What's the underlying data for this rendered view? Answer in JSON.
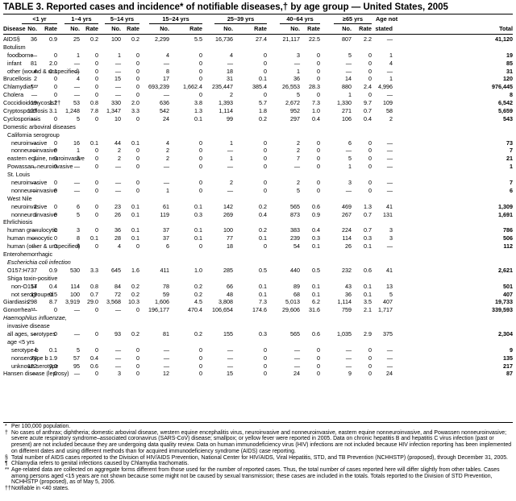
{
  "title": "TABLE 3. Reported cases and incidence* of notifiable diseases,† by age group — United States, 2005",
  "age_groups": [
    "<1 yr",
    "1–4 yrs",
    "5–14 yrs",
    "15–24 yrs",
    "25–39 yrs",
    "40–64 yrs",
    "≥65 yrs",
    "Age not"
  ],
  "column_headers": {
    "disease": "Disease",
    "no": "No.",
    "rate": "Rate",
    "stated": "stated",
    "total": "Total"
  },
  "rows": [
    {
      "label": "AIDS§",
      "indent": 0,
      "cells": [
        "36",
        "0.9",
        "25",
        "0.2",
        "100",
        "0.2",
        "2,299",
        "5.5",
        "16,736",
        "27.4",
        "21,117",
        "22.5",
        "807",
        "2.2",
        "—",
        "41,120"
      ]
    },
    {
      "label": "Botulism",
      "indent": 0,
      "cells": [
        "",
        "",
        "",
        "",
        "",
        "",
        "",
        "",
        "",
        "",
        "",
        "",
        "",
        "",
        "",
        ""
      ]
    },
    {
      "label": "foodborne",
      "indent": 1,
      "cells": [
        "—",
        "0",
        "1",
        "0",
        "1",
        "0",
        "4",
        "0",
        "4",
        "0",
        "3",
        "0",
        "5",
        "0",
        "1",
        "19"
      ]
    },
    {
      "label": "infant",
      "indent": 1,
      "cells": [
        "81",
        "2.0",
        "—",
        "0",
        "—",
        "0",
        "—",
        "0",
        "—",
        "0",
        "—",
        "0",
        "—",
        "0",
        "4",
        "85"
      ]
    },
    {
      "label": "other (wound & unspecified)",
      "indent": 1,
      "cells": [
        "4",
        "0.1",
        "—",
        "0",
        "—",
        "0",
        "8",
        "0",
        "18",
        "0",
        "1",
        "0",
        "—",
        "0",
        "—",
        "31"
      ]
    },
    {
      "label": "Brucellosis",
      "indent": 0,
      "cells": [
        "2",
        "0",
        "4",
        "0",
        "15",
        "0",
        "17",
        "0",
        "31",
        "0.1",
        "36",
        "0",
        "14",
        "0",
        "1",
        "120"
      ]
    },
    {
      "label": "Chlamydia¶**",
      "indent": 0,
      "cells": [
        "—",
        "0",
        "—",
        "0",
        "—",
        "0",
        "693,239",
        "1,662.4",
        "235,447",
        "385.4",
        "26,553",
        "28.3",
        "880",
        "2.4",
        "4,996",
        "976,445"
      ]
    },
    {
      "label": "Cholera",
      "indent": 0,
      "cells": [
        "—",
        "0",
        "—",
        "0",
        "—",
        "0",
        "—",
        "0",
        "2",
        "0",
        "5",
        "0",
        "1",
        "0",
        "—",
        "8"
      ]
    },
    {
      "label": "Coccidioidomycosis††",
      "indent": 0,
      "cells": [
        "19",
        "1.2",
        "53",
        "0.8",
        "330",
        "2.0",
        "636",
        "3.8",
        "1,393",
        "5.7",
        "2,672",
        "7.3",
        "1,330",
        "9.7",
        "109",
        "6,542"
      ]
    },
    {
      "label": "Cryptosporidiosis",
      "indent": 0,
      "cells": [
        "127",
        "3.1",
        "1,248",
        "7.8",
        "1,347",
        "3.3",
        "542",
        "1.3",
        "1,114",
        "1.8",
        "952",
        "1.0",
        "271",
        "0.7",
        "58",
        "5,659"
      ]
    },
    {
      "label": "Cyclosporiasis",
      "indent": 0,
      "cells": [
        "—",
        "0",
        "5",
        "0",
        "10",
        "0",
        "24",
        "0.1",
        "99",
        "0.2",
        "297",
        "0.4",
        "106",
        "0.4",
        "2",
        "543"
      ]
    },
    {
      "label": "Domestic arboviral diseases",
      "indent": 0,
      "cells": [
        "",
        "",
        "",
        "",
        "",
        "",
        "",
        "",
        "",
        "",
        "",
        "",
        "",
        "",
        "",
        ""
      ]
    },
    {
      "label": "California serogroup",
      "indent": 1,
      "cells": [
        "",
        "",
        "",
        "",
        "",
        "",
        "",
        "",
        "",
        "",
        "",
        "",
        "",
        "",
        "",
        ""
      ]
    },
    {
      "label": "neuroinvasive",
      "indent": 2,
      "cells": [
        "—",
        "0",
        "16",
        "0.1",
        "44",
        "0.1",
        "4",
        "0",
        "1",
        "0",
        "2",
        "0",
        "6",
        "0",
        "—",
        "73"
      ]
    },
    {
      "label": "nonneuroinvasive",
      "indent": 2,
      "cells": [
        "—",
        "0",
        "1",
        "0",
        "2",
        "0",
        "2",
        "0",
        "—",
        "0",
        "2",
        "0",
        "—",
        "0",
        "—",
        "7"
      ]
    },
    {
      "label": "eastern equine, neuroinvasive",
      "indent": 1,
      "cells": [
        "1",
        "0",
        "3",
        "0",
        "2",
        "0",
        "2",
        "0",
        "1",
        "0",
        "7",
        "0",
        "5",
        "0",
        "—",
        "21"
      ]
    },
    {
      "label": "Powassan, neuroinvasive",
      "indent": 1,
      "cells": [
        "—",
        "0",
        "—",
        "0",
        "—",
        "0",
        "—",
        "0",
        "—",
        "0",
        "—",
        "0",
        "1",
        "0",
        "—",
        "1"
      ]
    },
    {
      "label": "St. Louis",
      "indent": 1,
      "cells": [
        "",
        "",
        "",
        "",
        "",
        "",
        "",
        "",
        "",
        "",
        "",
        "",
        "",
        "",
        "",
        ""
      ]
    },
    {
      "label": "neuroinvasive",
      "indent": 2,
      "cells": [
        "—",
        "0",
        "—",
        "0",
        "—",
        "0",
        "—",
        "0",
        "2",
        "0",
        "2",
        "0",
        "3",
        "0",
        "—",
        "7"
      ]
    },
    {
      "label": "nonneuroinvasive",
      "indent": 2,
      "cells": [
        "—",
        "0",
        "—",
        "0",
        "—",
        "0",
        "1",
        "0",
        "—",
        "0",
        "5",
        "0",
        "—",
        "0",
        "—",
        "6"
      ]
    },
    {
      "label": "West Nile",
      "indent": 1,
      "cells": [
        "",
        "",
        "",
        "",
        "",
        "",
        "",
        "",
        "",
        "",
        "",
        "",
        "",
        "",
        "",
        ""
      ]
    },
    {
      "label": "neuroinvasive",
      "indent": 2,
      "cells": [
        "2",
        "0",
        "6",
        "0",
        "23",
        "0.1",
        "61",
        "0.1",
        "142",
        "0.2",
        "565",
        "0.6",
        "469",
        "1.3",
        "41",
        "1,309"
      ]
    },
    {
      "label": "nonneuroinvasive",
      "indent": 2,
      "cells": [
        "1",
        "0",
        "5",
        "0",
        "26",
        "0.1",
        "119",
        "0.3",
        "269",
        "0.4",
        "873",
        "0.9",
        "267",
        "0.7",
        "131",
        "1,691"
      ]
    },
    {
      "label": "Ehrlichiosis",
      "indent": 0,
      "cells": [
        "",
        "",
        "",
        "",
        "",
        "",
        "",
        "",
        "",
        "",
        "",
        "",
        "",
        "",
        "",
        ""
      ]
    },
    {
      "label": "human granulocytic",
      "indent": 1,
      "cells": [
        "—",
        "0",
        "3",
        "0",
        "36",
        "0.1",
        "37",
        "0.1",
        "100",
        "0.2",
        "383",
        "0.4",
        "224",
        "0.7",
        "3",
        "786"
      ]
    },
    {
      "label": "human monocytic",
      "indent": 1,
      "cells": [
        "—",
        "0",
        "8",
        "0.1",
        "28",
        "0.1",
        "37",
        "0.1",
        "77",
        "0.1",
        "239",
        "0.3",
        "114",
        "0.3",
        "3",
        "506"
      ]
    },
    {
      "label": "human (other & unspecified)",
      "indent": 1,
      "cells": [
        "—",
        "0",
        "4",
        "0",
        "4",
        "0",
        "6",
        "0",
        "18",
        "0",
        "54",
        "0.1",
        "26",
        "0.1",
        "—",
        "112"
      ]
    },
    {
      "label": "Enterohemorrhagic",
      "indent": 0,
      "cells": [
        "",
        "",
        "",
        "",
        "",
        "",
        "",
        "",
        "",
        "",
        "",
        "",
        "",
        "",
        "",
        ""
      ]
    },
    {
      "label": "Escherichia coli infection",
      "indent": 1,
      "italic": true,
      "cells": [
        "",
        "",
        "",
        "",
        "",
        "",
        "",
        "",
        "",
        "",
        "",
        "",
        "",
        "",
        "",
        ""
      ]
    },
    {
      "label": "O157:H7",
      "indent": 1,
      "cells": [
        "37",
        "0.9",
        "530",
        "3.3",
        "645",
        "1.6",
        "411",
        "1.0",
        "285",
        "0.5",
        "440",
        "0.5",
        "232",
        "0.6",
        "41",
        "2,621"
      ]
    },
    {
      "label": "Shiga toxin-positive",
      "indent": 1,
      "cells": [
        "",
        "",
        "",
        "",
        "",
        "",
        "",
        "",
        "",
        "",
        "",
        "",
        "",
        "",
        "",
        ""
      ]
    },
    {
      "label": "non-O157",
      "indent": 2,
      "cells": [
        "14",
        "0.4",
        "114",
        "0.8",
        "84",
        "0.2",
        "78",
        "0.2",
        "66",
        "0.1",
        "89",
        "0.1",
        "43",
        "0.1",
        "13",
        "501"
      ]
    },
    {
      "label": "not serogrouped",
      "indent": 2,
      "cells": [
        "19",
        "0.5",
        "100",
        "0.7",
        "72",
        "0.2",
        "59",
        "0.2",
        "48",
        "0.1",
        "68",
        "0.1",
        "36",
        "0.1",
        "5",
        "407"
      ]
    },
    {
      "label": "Giardiasis",
      "indent": 0,
      "cells": [
        "298",
        "8.7",
        "3,919",
        "29.0",
        "3,568",
        "10.3",
        "1,606",
        "4.5",
        "3,808",
        "7.3",
        "5,013",
        "6.2",
        "1,114",
        "3.5",
        "407",
        "19,733"
      ]
    },
    {
      "label": "Gonorrhea**",
      "indent": 0,
      "cells": [
        "—",
        "0",
        "—",
        "0",
        "—",
        "0",
        "196,177",
        "470.4",
        "106,654",
        "174.6",
        "29,606",
        "31.6",
        "759",
        "2.1",
        "1,717",
        "339,593"
      ]
    },
    {
      "label": "Haemophilus influenzae,",
      "indent": 0,
      "italic": true,
      "cells": [
        "",
        "",
        "",
        "",
        "",
        "",
        "",
        "",
        "",
        "",
        "",
        "",
        "",
        "",
        "",
        ""
      ]
    },
    {
      "label": "invasive disease",
      "indent": 1,
      "cells": [
        "",
        "",
        "",
        "",
        "",
        "",
        "",
        "",
        "",
        "",
        "",
        "",
        "",
        "",
        "",
        ""
      ]
    },
    {
      "label": "all ages, serotypes",
      "indent": 1,
      "cells": [
        "—",
        "0",
        "—",
        "0",
        "93",
        "0.2",
        "81",
        "0.2",
        "155",
        "0.3",
        "565",
        "0.6",
        "1,035",
        "2.9",
        "375",
        "2,304"
      ]
    },
    {
      "label": "age <5 yrs",
      "indent": 1,
      "cells": [
        "",
        "",
        "",
        "",
        "",
        "",
        "",
        "",
        "",
        "",
        "",
        "",
        "",
        "",
        "",
        ""
      ]
    },
    {
      "label": "serotype b",
      "indent": 2,
      "cells": [
        "4",
        "0.1",
        "5",
        "0",
        "—",
        "0",
        "—",
        "0",
        "—",
        "0",
        "—",
        "0",
        "—",
        "0",
        "—",
        "9"
      ]
    },
    {
      "label": "nonserotype b",
      "indent": 2,
      "cells": [
        "78",
        "1.9",
        "57",
        "0.4",
        "—",
        "0",
        "—",
        "0",
        "—",
        "0",
        "—",
        "0",
        "—",
        "0",
        "—",
        "135"
      ]
    },
    {
      "label": "unknown serotype",
      "indent": 2,
      "cells": [
        "122",
        "3.0",
        "95",
        "0.6",
        "—",
        "0",
        "—",
        "0",
        "—",
        "0",
        "—",
        "0",
        "—",
        "0",
        "—",
        "217"
      ]
    },
    {
      "label": "Hansen disease (leprosy)",
      "indent": 0,
      "cells": [
        "—",
        "0",
        "—",
        "0",
        "3",
        "0",
        "12",
        "0",
        "15",
        "0",
        "24",
        "0",
        "9",
        "0",
        "24",
        "87"
      ]
    }
  ],
  "footnotes": [
    {
      "mark": "*",
      "text": "Per 100,000 population."
    },
    {
      "mark": "†",
      "text": "No cases of anthrax; diphtheria; domestic arboviral disease, western equine encephalitis virus, neuroinvasive and nonneuroinvasive, eastern equine nonneuroinvasive, and Powassen nonneuroinvasive; severe acute respiratory syndrome–associated coronavirus (SARS-CoV) disease; smallpox; or yellow fever were reported in 2005. Data on chronic hepatitis B and hepatitis C virus infection (past or present) are not included because they are undergoing data quality review. Data on human immunodeficiency virus (HIV) infections are not included because HIV infection reporting has been implemented on different dates and using different methods than for acquired immunodeficiency syndrome (AIDS) case reporting."
    },
    {
      "mark": "§",
      "text": "Total number of AIDS cases reported to the Division of HIV/AIDS Prevention, National Center for HIV/AIDS, Viral Hepatitis, STD, and TB Prevention (NCHHSTP) (proposed), through December 31, 2005."
    },
    {
      "mark": "¶",
      "text": "Chlamydia refers to genital infections caused by Chlamydia trachomatis."
    },
    {
      "mark": "**",
      "text": "Age-related data are collected on aggregate forms different from those used for the number of reported cases. Thus, the total number of cases reported here will differ slightly from other tables. Cases among persons aged <15 years are not shown because some might not be caused by sexual transmission; these cases are included in the totals. Totals reported to the Division of STD Prevention, NCHHSTP (proposed), as of May 5, 2006."
    },
    {
      "mark": "††",
      "text": "Notifiable in <40 states."
    }
  ]
}
